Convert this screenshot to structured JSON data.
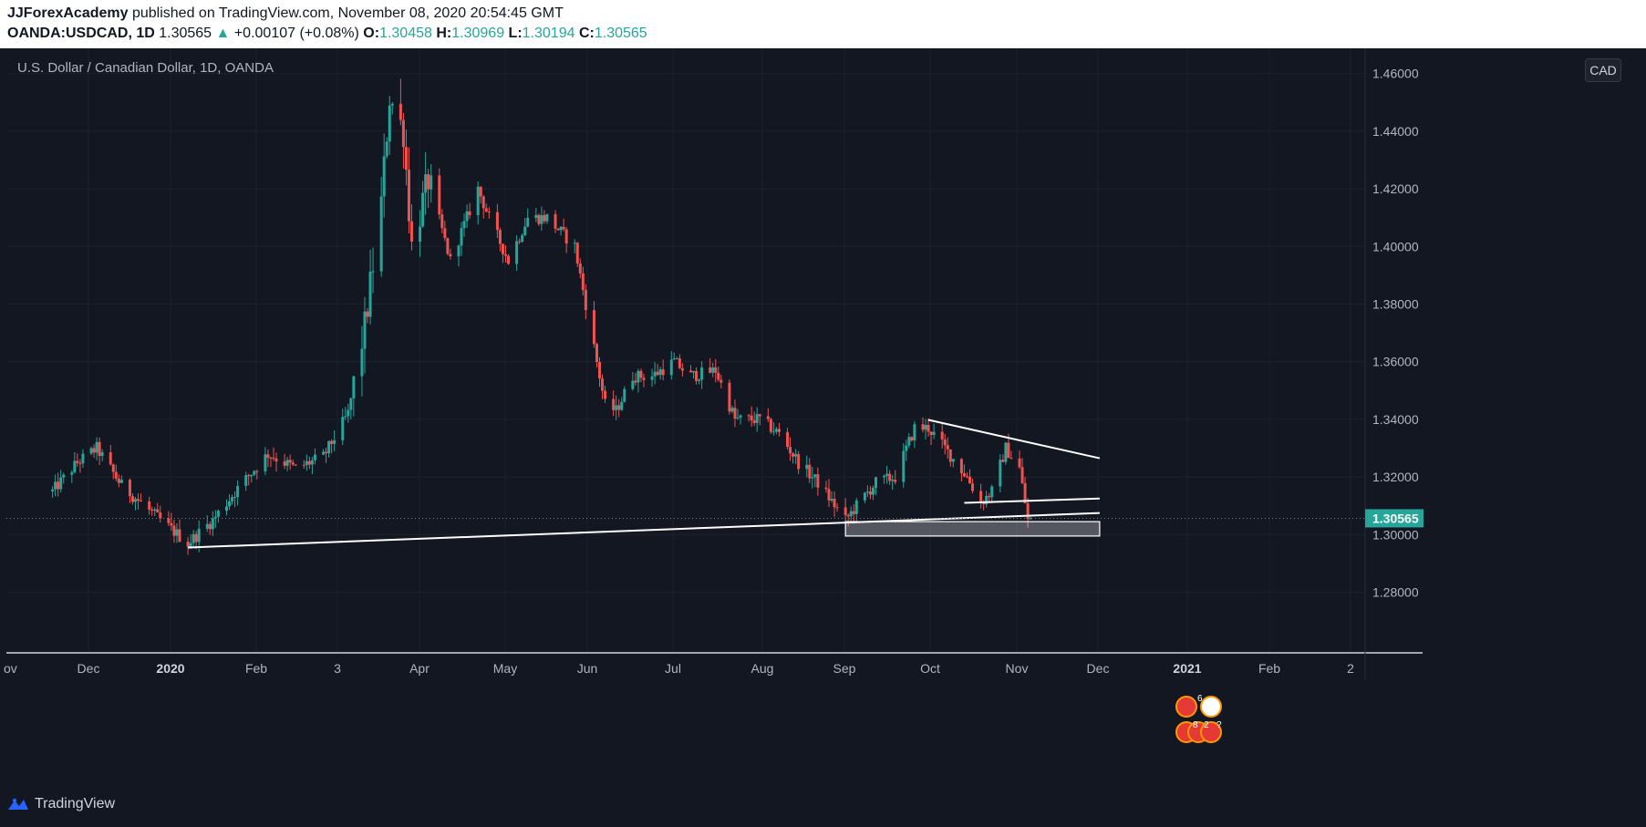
{
  "header": {
    "publisher": "JJForexAcademy",
    "published_text": "published on TradingView.com, November 08, 2020 20:54:45 GMT",
    "symbol": "OANDA:USDCAD, 1D",
    "last": "1.30565",
    "change_arrow": "▲",
    "change": "+0.00107 (+0.08%)",
    "o_label": "O:",
    "o": "1.30458",
    "h_label": "H:",
    "h": "1.30969",
    "l_label": "L:",
    "l": "1.30194",
    "c_label": "C:",
    "c": "1.30565"
  },
  "chart_title": "U.S. Dollar / Canadian Dollar, 1D, OANDA",
  "currency_badge": "CAD",
  "price_tag": "1.30565",
  "footer_brand": "TradingView",
  "event_badges": {
    "top_count": "6",
    "bottom_count": "8",
    "bottom_count2": "2",
    "bottom_q": "?"
  },
  "colors": {
    "background": "#131722",
    "up": "#26a69a",
    "down": "#ef5350",
    "grid": "#1e222d",
    "text": "#b2b5be",
    "trendline": "#ffffff"
  },
  "chart_data": {
    "type": "candlestick",
    "symbol": "USDCAD",
    "timeframe": "1D",
    "ylim": [
      1.2675,
      1.4675
    ],
    "yticks": [
      "1.28000",
      "1.30000",
      "1.32000",
      "1.34000",
      "1.36000",
      "1.38000",
      "1.40000",
      "1.42000",
      "1.44000",
      "1.46000"
    ],
    "xticks": [
      "ov",
      "Dec",
      "2020",
      "Feb",
      "3",
      "Apr",
      "May",
      "Jun",
      "Jul",
      "Aug",
      "Sep",
      "Oct",
      "Nov",
      "Dec",
      "2021",
      "Feb",
      "2"
    ],
    "xtick_bold": [
      "2020",
      "2021"
    ],
    "last_price": 1.30565,
    "anchors": [
      {
        "date": "2019-11-18",
        "close": 1.315
      },
      {
        "date": "2019-11-27",
        "close": 1.325
      },
      {
        "date": "2019-12-04",
        "close": 1.33
      },
      {
        "date": "2019-12-13",
        "close": 1.317
      },
      {
        "date": "2019-12-27",
        "close": 1.305
      },
      {
        "date": "2020-01-06",
        "close": 1.297
      },
      {
        "date": "2020-01-15",
        "close": 1.305
      },
      {
        "date": "2020-01-24",
        "close": 1.316
      },
      {
        "date": "2020-02-04",
        "close": 1.328
      },
      {
        "date": "2020-02-14",
        "close": 1.323
      },
      {
        "date": "2020-02-24",
        "close": 1.327
      },
      {
        "date": "2020-03-04",
        "close": 1.342
      },
      {
        "date": "2020-03-10",
        "close": 1.372
      },
      {
        "date": "2020-03-16",
        "close": 1.415
      },
      {
        "date": "2020-03-19",
        "close": 1.452
      },
      {
        "date": "2020-03-24",
        "close": 1.44
      },
      {
        "date": "2020-03-27",
        "close": 1.4
      },
      {
        "date": "2020-04-02",
        "close": 1.423
      },
      {
        "date": "2020-04-10",
        "close": 1.395
      },
      {
        "date": "2020-04-20",
        "close": 1.42
      },
      {
        "date": "2020-04-24",
        "close": 1.41
      },
      {
        "date": "2020-05-01",
        "close": 1.395
      },
      {
        "date": "2020-05-08",
        "close": 1.41
      },
      {
        "date": "2020-05-15",
        "close": 1.41
      },
      {
        "date": "2020-05-25",
        "close": 1.4
      },
      {
        "date": "2020-06-05",
        "close": 1.345
      },
      {
        "date": "2020-06-09",
        "close": 1.343
      },
      {
        "date": "2020-06-15",
        "close": 1.355
      },
      {
        "date": "2020-06-22",
        "close": 1.355
      },
      {
        "date": "2020-06-30",
        "close": 1.36
      },
      {
        "date": "2020-07-06",
        "close": 1.355
      },
      {
        "date": "2020-07-15",
        "close": 1.357
      },
      {
        "date": "2020-07-22",
        "close": 1.34
      },
      {
        "date": "2020-07-31",
        "close": 1.34
      },
      {
        "date": "2020-08-07",
        "close": 1.335
      },
      {
        "date": "2020-08-14",
        "close": 1.325
      },
      {
        "date": "2020-08-21",
        "close": 1.318
      },
      {
        "date": "2020-08-31",
        "close": 1.305
      },
      {
        "date": "2020-09-04",
        "close": 1.31
      },
      {
        "date": "2020-09-11",
        "close": 1.318
      },
      {
        "date": "2020-09-18",
        "close": 1.32
      },
      {
        "date": "2020-09-25",
        "close": 1.337
      },
      {
        "date": "2020-09-30",
        "close": 1.337
      },
      {
        "date": "2020-10-06",
        "close": 1.33
      },
      {
        "date": "2020-10-14",
        "close": 1.32
      },
      {
        "date": "2020-10-19",
        "close": 1.311
      },
      {
        "date": "2020-10-23",
        "close": 1.315
      },
      {
        "date": "2020-10-28",
        "close": 1.33
      },
      {
        "date": "2020-11-02",
        "close": 1.323
      },
      {
        "date": "2020-11-05",
        "close": 1.305
      },
      {
        "date": "2020-11-06",
        "close": 1.30565
      }
    ],
    "drawings": [
      {
        "type": "trendline",
        "from": {
          "date": "2020-01-06",
          "price": 1.2955
        },
        "to": {
          "date": "2020-12-01",
          "price": 1.3075
        }
      },
      {
        "type": "trendline",
        "from": {
          "date": "2020-09-30",
          "price": 1.3398
        },
        "to": {
          "date": "2020-12-01",
          "price": 1.3265
        }
      },
      {
        "type": "trendline",
        "from": {
          "date": "2020-10-13",
          "price": 1.311
        },
        "to": {
          "date": "2020-12-01",
          "price": 1.3125
        }
      },
      {
        "type": "rectangle",
        "from": {
          "date": "2020-08-31",
          "price": 1.3045
        },
        "to": {
          "date": "2020-12-01",
          "price": 1.2995
        }
      }
    ]
  }
}
